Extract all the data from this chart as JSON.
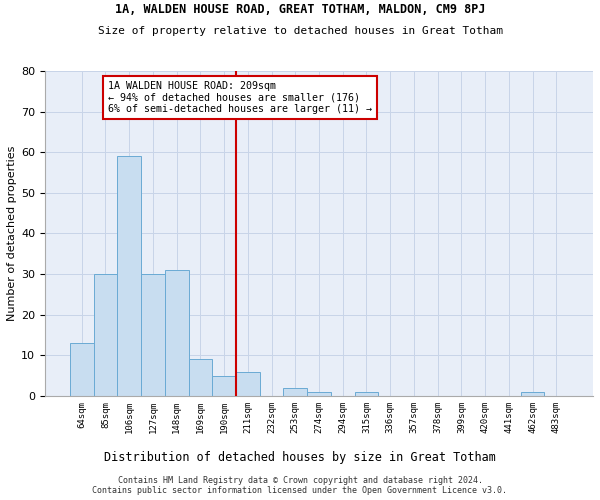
{
  "title1": "1A, WALDEN HOUSE ROAD, GREAT TOTHAM, MALDON, CM9 8PJ",
  "title2": "Size of property relative to detached houses in Great Totham",
  "xlabel": "Distribution of detached houses by size in Great Totham",
  "ylabel": "Number of detached properties",
  "footer1": "Contains HM Land Registry data © Crown copyright and database right 2024.",
  "footer2": "Contains public sector information licensed under the Open Government Licence v3.0.",
  "bar_labels": [
    "64sqm",
    "85sqm",
    "106sqm",
    "127sqm",
    "148sqm",
    "169sqm",
    "190sqm",
    "211sqm",
    "232sqm",
    "253sqm",
    "274sqm",
    "294sqm",
    "315sqm",
    "336sqm",
    "357sqm",
    "378sqm",
    "399sqm",
    "420sqm",
    "441sqm",
    "462sqm",
    "483sqm"
  ],
  "bar_values": [
    13,
    30,
    59,
    30,
    31,
    9,
    5,
    6,
    0,
    2,
    1,
    0,
    1,
    0,
    0,
    0,
    0,
    0,
    0,
    1,
    0
  ],
  "bar_color": "#c8ddf0",
  "bar_edge_color": "#6aaad4",
  "grid_color": "#c8d4e8",
  "bg_color": "#e8eef8",
  "vline_color": "#cc0000",
  "annotation_text": "1A WALDEN HOUSE ROAD: 209sqm\n← 94% of detached houses are smaller (176)\n6% of semi-detached houses are larger (11) →",
  "annotation_box_color": "#cc0000",
  "ylim": [
    0,
    80
  ],
  "yticks": [
    0,
    10,
    20,
    30,
    40,
    50,
    60,
    70,
    80
  ],
  "vline_index": 6.5
}
